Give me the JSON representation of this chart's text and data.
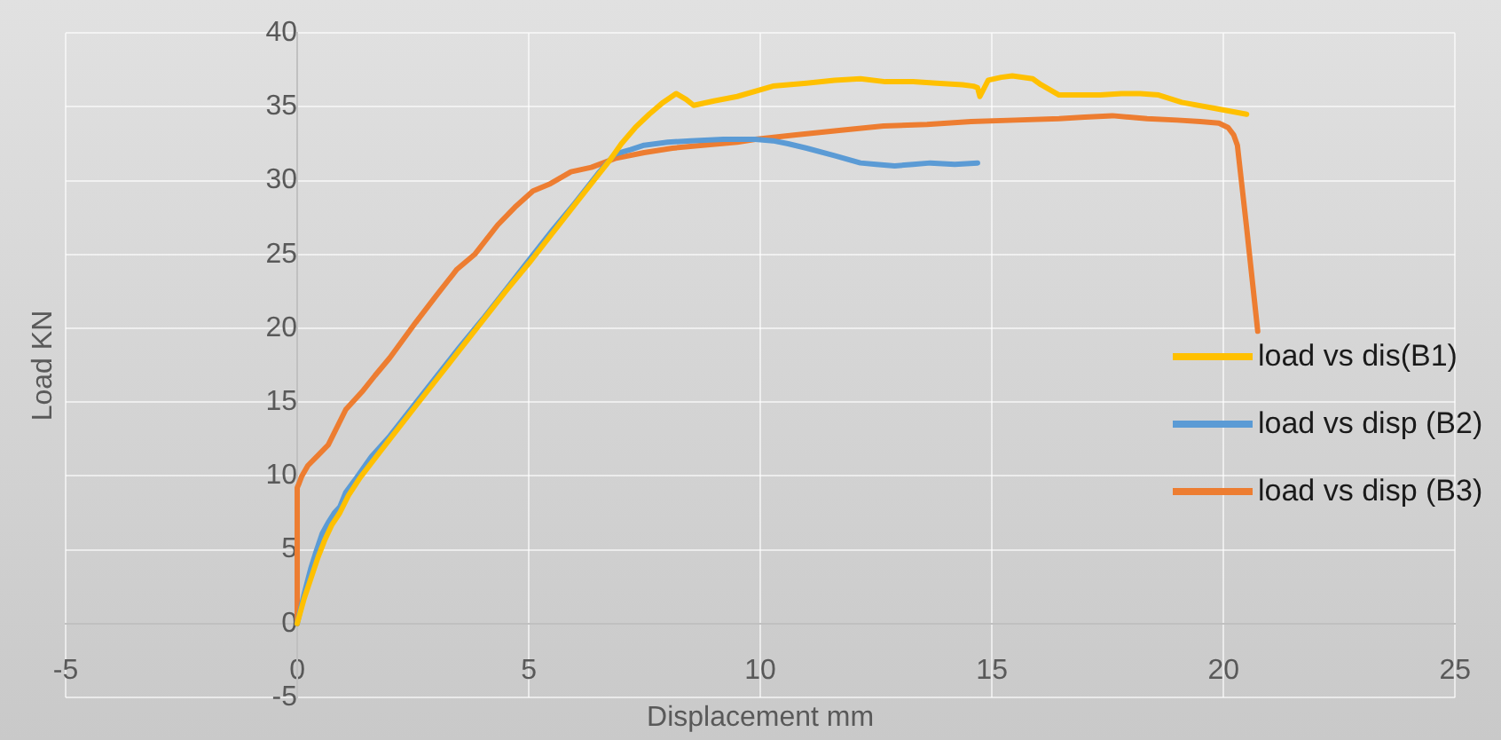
{
  "chart_data": {
    "type": "line",
    "xlabel": "Displacement mm",
    "ylabel": "Load KN",
    "xlim": [
      -5,
      25
    ],
    "xticks": [
      -5,
      0,
      5,
      10,
      15,
      20,
      25
    ],
    "ylim": [
      -5,
      40
    ],
    "yticks": [
      -5,
      0,
      5,
      10,
      15,
      20,
      25,
      30,
      35,
      40
    ],
    "grid": true,
    "legend": "right",
    "marker": "none",
    "series": [
      {
        "name": "load vs dis(B1)",
        "color": "#ffc000",
        "x": [
          0,
          0.15,
          0.29,
          0.45,
          0.6,
          0.75,
          0.92,
          1.11,
          1.36,
          2.0,
          2.5,
          3.0,
          3.5,
          4.0,
          4.5,
          5.0,
          5.5,
          6.0,
          6.4,
          6.73,
          7.0,
          7.3,
          7.6,
          7.9,
          8.18,
          8.4,
          8.56,
          9.0,
          9.5,
          10.27,
          11.0,
          11.6,
          12.16,
          12.7,
          13.3,
          13.8,
          14.36,
          14.6,
          14.69,
          14.74,
          14.92,
          15.2,
          15.44,
          15.88,
          16.06,
          16.45,
          16.9,
          17.34,
          17.8,
          18.2,
          18.6,
          19.1,
          19.8,
          20.5
        ],
        "values": [
          0,
          1.7,
          3.0,
          4.5,
          5.7,
          6.7,
          7.5,
          8.7,
          9.9,
          12.5,
          14.5,
          16.5,
          18.5,
          20.5,
          22.5,
          24.4,
          26.4,
          28.4,
          30.0,
          31.3,
          32.5,
          33.6,
          34.5,
          35.3,
          35.9,
          35.5,
          35.1,
          35.4,
          35.7,
          36.4,
          36.6,
          36.8,
          36.9,
          36.7,
          36.7,
          36.6,
          36.5,
          36.4,
          36.3,
          35.7,
          36.8,
          37.0,
          37.1,
          36.9,
          36.5,
          35.8,
          35.8,
          35.8,
          35.9,
          35.9,
          35.8,
          35.3,
          34.9,
          34.5
        ]
      },
      {
        "name": "load vs disp (B2)",
        "color": "#5b9bd5",
        "x": [
          0,
          0.15,
          0.29,
          0.42,
          0.54,
          0.68,
          0.8,
          0.92,
          1.05,
          1.24,
          1.6,
          2.0,
          2.5,
          3.0,
          3.5,
          4.0,
          4.5,
          5.0,
          5.5,
          6.0,
          6.5,
          6.86,
          7.2,
          7.49,
          8.0,
          8.5,
          9.2,
          9.89,
          10.27,
          10.6,
          11.0,
          11.6,
          12.16,
          12.5,
          12.9,
          13.3,
          13.67,
          14.2,
          14.69
        ],
        "values": [
          0,
          2.0,
          3.7,
          5.0,
          6.1,
          6.9,
          7.5,
          7.9,
          8.9,
          9.7,
          11.3,
          12.7,
          14.7,
          16.7,
          18.7,
          20.6,
          22.6,
          24.6,
          26.6,
          28.5,
          30.5,
          31.8,
          32.1,
          32.4,
          32.6,
          32.7,
          32.8,
          32.8,
          32.7,
          32.5,
          32.2,
          31.7,
          31.2,
          31.1,
          31.0,
          31.1,
          31.2,
          31.1,
          31.2
        ]
      },
      {
        "name": "load vs disp (B3)",
        "color": "#ed7d31",
        "x": [
          0,
          0,
          0.04,
          0.1,
          0.23,
          0.45,
          0.67,
          1.05,
          1.4,
          1.68,
          2.0,
          2.56,
          3.0,
          3.45,
          3.83,
          4.33,
          4.7,
          5.09,
          5.47,
          5.91,
          6.35,
          6.86,
          7.49,
          8.1,
          8.75,
          9.5,
          9.89,
          10.77,
          11.7,
          12.66,
          13.6,
          14.55,
          15.5,
          16.45,
          17.0,
          17.6,
          18.35,
          19.0,
          19.5,
          19.9,
          20.1,
          20.22,
          20.3,
          20.4,
          20.5,
          20.62,
          20.74
        ],
        "values": [
          0,
          9.2,
          9.5,
          10.0,
          10.7,
          11.4,
          12.1,
          14.5,
          15.7,
          16.8,
          18.0,
          20.4,
          22.2,
          24.0,
          25.0,
          27.0,
          28.2,
          29.3,
          29.8,
          30.6,
          30.9,
          31.5,
          31.9,
          32.2,
          32.4,
          32.6,
          32.8,
          33.1,
          33.4,
          33.7,
          33.8,
          34.0,
          34.1,
          34.2,
          34.3,
          34.4,
          34.2,
          34.1,
          34.0,
          33.9,
          33.6,
          33.1,
          32.4,
          29.6,
          26.8,
          23.3,
          19.8
        ]
      }
    ]
  }
}
